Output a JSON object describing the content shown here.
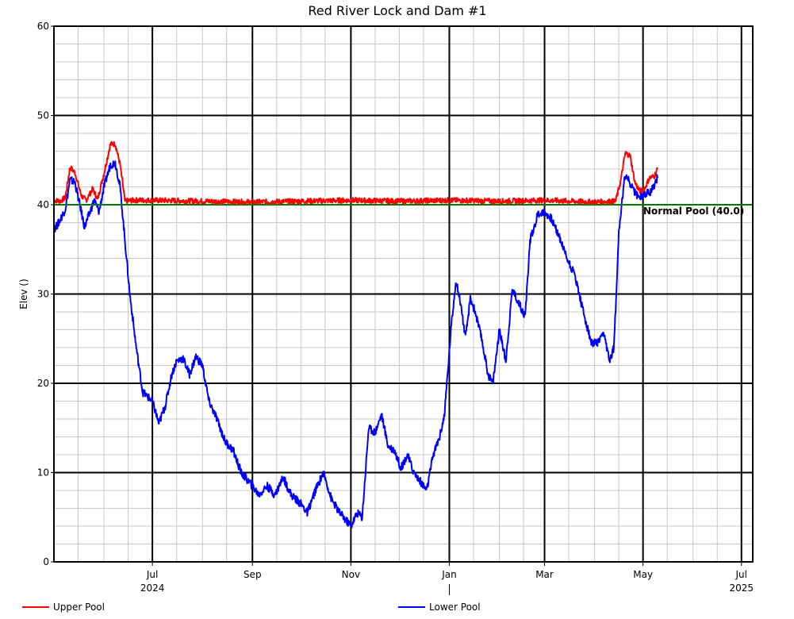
{
  "chart_data": {
    "type": "line",
    "title": "Red River Lock and Dam #1",
    "ylabel": "Elev ()",
    "xlabel": "",
    "ylim": [
      0,
      60
    ],
    "xlim": [
      "2024-05-01",
      "2025-07-08"
    ],
    "y_ticks": [
      "0",
      "10",
      "20",
      "30",
      "40",
      "50",
      "60"
    ],
    "x_ticks": [
      {
        "label": "Jul",
        "date": "2024-07-01",
        "year": "2024"
      },
      {
        "label": "Sep",
        "date": "2024-09-01"
      },
      {
        "label": "Nov",
        "date": "2024-11-01"
      },
      {
        "label": "Jan",
        "date": "2025-01-01"
      },
      {
        "label": "Mar",
        "date": "2025-03-01"
      },
      {
        "label": "May",
        "date": "2025-05-01"
      },
      {
        "label": "Jul",
        "date": "2025-07-01",
        "year": "2025"
      }
    ],
    "grid": true,
    "legend_position": "bottom",
    "reference_line": {
      "label": "Normal Pool (40.0)",
      "value": 40.0,
      "color": "#00a000"
    },
    "series": [
      {
        "name": "Upper Pool",
        "color": "#ff0000",
        "points": [
          [
            "2024-05-01",
            40.5
          ],
          [
            "2024-05-05",
            40.4
          ],
          [
            "2024-05-08",
            40.8
          ],
          [
            "2024-05-11",
            44.2
          ],
          [
            "2024-05-14",
            43.6
          ],
          [
            "2024-05-18",
            41.0
          ],
          [
            "2024-05-21",
            40.5
          ],
          [
            "2024-05-25",
            41.8
          ],
          [
            "2024-05-28",
            40.6
          ],
          [
            "2024-06-01",
            43.5
          ],
          [
            "2024-06-05",
            46.8
          ],
          [
            "2024-06-08",
            46.8
          ],
          [
            "2024-06-11",
            44.5
          ],
          [
            "2024-06-14",
            40.4
          ],
          [
            "2024-06-20",
            40.5
          ],
          [
            "2024-07-01",
            40.5
          ],
          [
            "2024-08-01",
            40.4
          ],
          [
            "2024-09-01",
            40.3
          ],
          [
            "2024-10-01",
            40.4
          ],
          [
            "2024-11-01",
            40.5
          ],
          [
            "2024-12-01",
            40.4
          ],
          [
            "2025-01-01",
            40.5
          ],
          [
            "2025-02-01",
            40.4
          ],
          [
            "2025-03-01",
            40.5
          ],
          [
            "2025-04-01",
            40.3
          ],
          [
            "2025-04-14",
            40.4
          ],
          [
            "2025-04-17",
            42.5
          ],
          [
            "2025-04-20",
            45.8
          ],
          [
            "2025-04-23",
            45.5
          ],
          [
            "2025-04-26",
            42.5
          ],
          [
            "2025-04-29",
            41.5
          ],
          [
            "2025-05-02",
            41.8
          ],
          [
            "2025-05-05",
            43.0
          ],
          [
            "2025-05-08",
            43.2
          ],
          [
            "2025-05-10",
            44.0
          ]
        ]
      },
      {
        "name": "Lower Pool",
        "color": "#0000ff",
        "points": [
          [
            "2024-05-01",
            37.2
          ],
          [
            "2024-05-04",
            38.0
          ],
          [
            "2024-05-08",
            39.5
          ],
          [
            "2024-05-11",
            42.8
          ],
          [
            "2024-05-14",
            42.5
          ],
          [
            "2024-05-17",
            40.0
          ],
          [
            "2024-05-20",
            37.5
          ],
          [
            "2024-05-23",
            39.0
          ],
          [
            "2024-05-26",
            40.5
          ],
          [
            "2024-05-29",
            39.2
          ],
          [
            "2024-06-01",
            42.0
          ],
          [
            "2024-06-05",
            44.5
          ],
          [
            "2024-06-08",
            44.7
          ],
          [
            "2024-06-11",
            42.0
          ],
          [
            "2024-06-14",
            36.0
          ],
          [
            "2024-06-17",
            30.0
          ],
          [
            "2024-06-21",
            24.0
          ],
          [
            "2024-06-25",
            19.0
          ],
          [
            "2024-07-01",
            18.0
          ],
          [
            "2024-07-05",
            15.5
          ],
          [
            "2024-07-09",
            17.5
          ],
          [
            "2024-07-13",
            21.0
          ],
          [
            "2024-07-16",
            22.5
          ],
          [
            "2024-07-20",
            22.8
          ],
          [
            "2024-07-24",
            21.0
          ],
          [
            "2024-07-28",
            23.0
          ],
          [
            "2024-08-01",
            22.0
          ],
          [
            "2024-08-05",
            18.0
          ],
          [
            "2024-08-10",
            16.0
          ],
          [
            "2024-08-15",
            13.5
          ],
          [
            "2024-08-20",
            12.5
          ],
          [
            "2024-08-25",
            10.0
          ],
          [
            "2024-09-01",
            8.5
          ],
          [
            "2024-09-05",
            7.5
          ],
          [
            "2024-09-10",
            8.5
          ],
          [
            "2024-09-15",
            7.5
          ],
          [
            "2024-09-20",
            9.5
          ],
          [
            "2024-09-25",
            7.5
          ],
          [
            "2024-10-01",
            6.5
          ],
          [
            "2024-10-05",
            5.5
          ],
          [
            "2024-10-10",
            8.0
          ],
          [
            "2024-10-15",
            10.0
          ],
          [
            "2024-10-20",
            7.0
          ],
          [
            "2024-10-25",
            5.5
          ],
          [
            "2024-11-01",
            4.0
          ],
          [
            "2024-11-05",
            5.5
          ],
          [
            "2024-11-08",
            5.0
          ],
          [
            "2024-11-12",
            15.0
          ],
          [
            "2024-11-16",
            14.5
          ],
          [
            "2024-11-20",
            16.5
          ],
          [
            "2024-11-24",
            13.0
          ],
          [
            "2024-11-28",
            12.5
          ],
          [
            "2024-12-02",
            10.5
          ],
          [
            "2024-12-06",
            12.0
          ],
          [
            "2024-12-10",
            10.0
          ],
          [
            "2024-12-14",
            9.0
          ],
          [
            "2024-12-18",
            8.0
          ],
          [
            "2024-12-22",
            12.0
          ],
          [
            "2024-12-26",
            14.0
          ],
          [
            "2024-12-29",
            16.5
          ],
          [
            "2025-01-02",
            26.0
          ],
          [
            "2025-01-05",
            31.5
          ],
          [
            "2025-01-08",
            29.0
          ],
          [
            "2025-01-11",
            25.0
          ],
          [
            "2025-01-14",
            29.5
          ],
          [
            "2025-01-17",
            28.0
          ],
          [
            "2025-01-21",
            25.0
          ],
          [
            "2025-01-25",
            21.0
          ],
          [
            "2025-01-28",
            20.0
          ],
          [
            "2025-02-01",
            26.0
          ],
          [
            "2025-02-05",
            22.5
          ],
          [
            "2025-02-09",
            30.5
          ],
          [
            "2025-02-13",
            29.0
          ],
          [
            "2025-02-17",
            27.5
          ],
          [
            "2025-02-20",
            36.0
          ],
          [
            "2025-02-25",
            39.0
          ],
          [
            "2025-03-01",
            39.2
          ],
          [
            "2025-03-05",
            38.5
          ],
          [
            "2025-03-10",
            36.5
          ],
          [
            "2025-03-15",
            34.0
          ],
          [
            "2025-03-20",
            32.0
          ],
          [
            "2025-03-25",
            28.0
          ],
          [
            "2025-03-30",
            24.5
          ],
          [
            "2025-04-03",
            24.5
          ],
          [
            "2025-04-07",
            25.5
          ],
          [
            "2025-04-10",
            22.5
          ],
          [
            "2025-04-13",
            24.0
          ],
          [
            "2025-04-16",
            37.0
          ],
          [
            "2025-04-20",
            43.5
          ],
          [
            "2025-04-24",
            42.0
          ],
          [
            "2025-04-28",
            40.8
          ],
          [
            "2025-05-02",
            41.2
          ],
          [
            "2025-05-06",
            41.5
          ],
          [
            "2025-05-10",
            43.0
          ]
        ]
      }
    ]
  }
}
